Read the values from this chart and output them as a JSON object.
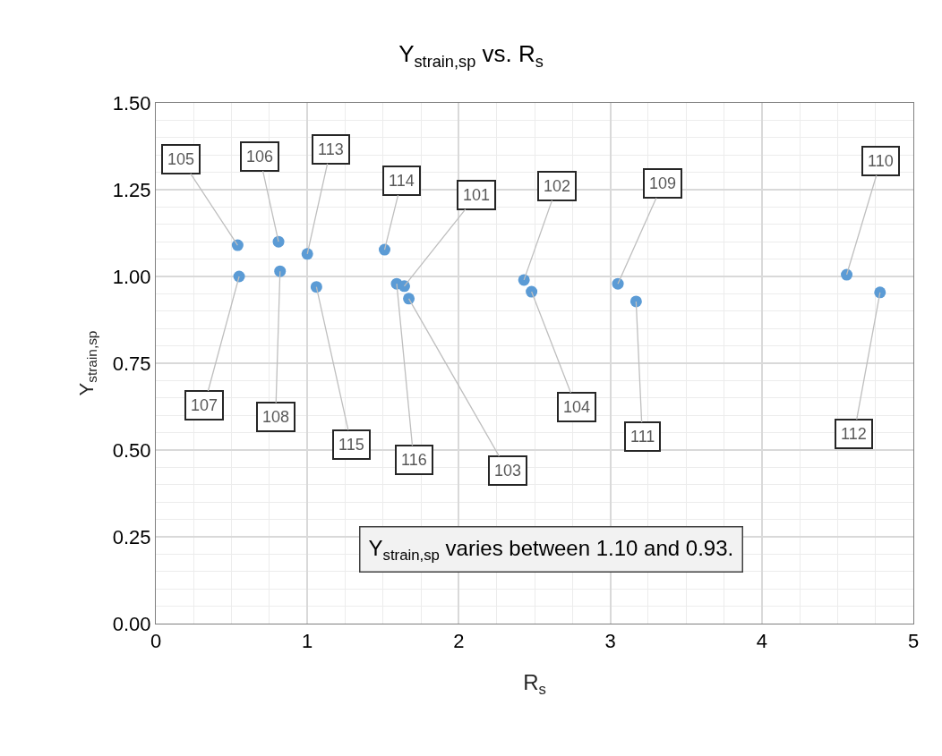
{
  "chart_data": {
    "type": "scatter",
    "title": "Y$_{strain,sp}$ vs. R$_{s}$",
    "xlabel": "R$_{s}$",
    "ylabel": "Y$_{strain,sp}$",
    "x": [
      0.54,
      0.55,
      0.81,
      0.82,
      1.0,
      1.06,
      1.51,
      1.59,
      1.64,
      1.67,
      2.43,
      2.48,
      3.05,
      3.17,
      4.56,
      4.78
    ],
    "series": [
      {
        "color": "#5b9bd5",
        "values": [
          1.09,
          1.0,
          1.1,
          1.015,
          1.065,
          0.97,
          1.077,
          0.979,
          0.972,
          0.936,
          0.99,
          0.956,
          0.979,
          0.928,
          1.005,
          0.954
        ]
      }
    ],
    "xlim": [
      0,
      5
    ],
    "xticks": [
      0,
      1,
      2,
      3,
      4,
      5
    ],
    "ylim": [
      0,
      1.5
    ],
    "yticks": [
      {
        "value": 0,
        "label": "0.00"
      },
      {
        "value": 0.25,
        "label": "0.25"
      },
      {
        "value": 0.5,
        "label": "0.50"
      },
      {
        "value": 0.75,
        "label": "0.75"
      },
      {
        "value": 1.0,
        "label": "1.00"
      },
      {
        "value": 1.25,
        "label": "1.25"
      },
      {
        "value": 1.5,
        "label": "1.50"
      }
    ],
    "grid": true,
    "marker": "circle",
    "annotations": [
      {
        "text": "105",
        "x": 0.54,
        "y": 1.09
      },
      {
        "text": "107",
        "x": 0.55,
        "y": 1.0
      },
      {
        "text": "106",
        "x": 0.81,
        "y": 1.1
      },
      {
        "text": "108",
        "x": 0.82,
        "y": 1.015
      },
      {
        "text": "113",
        "x": 1.0,
        "y": 1.065
      },
      {
        "text": "115",
        "x": 1.06,
        "y": 0.97
      },
      {
        "text": "114",
        "x": 1.51,
        "y": 1.077
      },
      {
        "text": "116",
        "x": 1.59,
        "y": 0.979
      },
      {
        "text": "101",
        "x": 1.64,
        "y": 0.972
      },
      {
        "text": "103",
        "x": 1.67,
        "y": 0.936
      },
      {
        "text": "102",
        "x": 2.43,
        "y": 0.99
      },
      {
        "text": "104",
        "x": 2.48,
        "y": 0.956
      },
      {
        "text": "109",
        "x": 3.05,
        "y": 0.979
      },
      {
        "text": "111",
        "x": 3.17,
        "y": 0.928
      },
      {
        "text": "110",
        "x": 4.56,
        "y": 1.005
      },
      {
        "text": "112",
        "x": 4.78,
        "y": 0.954
      },
      "Y$_{strain,sp}$ varies between 1.10 and 0.93."
    ]
  }
}
